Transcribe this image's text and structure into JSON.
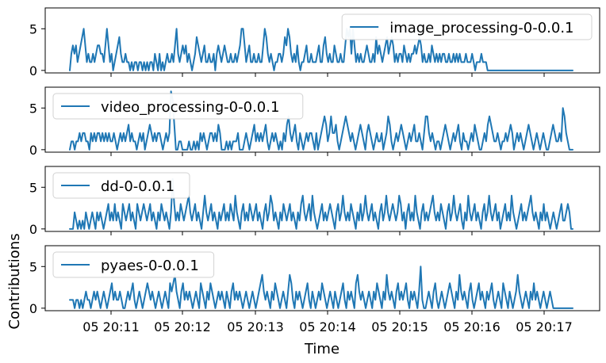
{
  "chart_data": {
    "type": "line",
    "x_axis_label": "Time",
    "y_axis_label": "Contributions",
    "time_ticks": [
      "05 20:11",
      "05 20:12",
      "05 20:13",
      "05 20:14",
      "05 20:15",
      "05 20:16",
      "05 20:17"
    ],
    "x_range_minutes_approx": [
      "20:10:28",
      "20:17:27"
    ],
    "line_color": "#1f77b4",
    "grid": false,
    "legend_placements": [
      "top-right",
      "top-left",
      "top-left",
      "top-left"
    ],
    "panels": [
      {
        "name": "image_processing-0-0.0.1",
        "yticks": [
          0,
          5
        ],
        "ylim": [
          -0.3,
          7.5
        ],
        "values": [
          0,
          2,
          3,
          2,
          3,
          1,
          2,
          3,
          4,
          5,
          3,
          1,
          2,
          1,
          1,
          2,
          1,
          2,
          3,
          3,
          2,
          2,
          1,
          3,
          5,
          3,
          1,
          2,
          0,
          1,
          2,
          3,
          4,
          2,
          1,
          1,
          2,
          1,
          1,
          0,
          1,
          0,
          1,
          1,
          0,
          1,
          1,
          0,
          1,
          0,
          1,
          0,
          1,
          1,
          0,
          2,
          1,
          0,
          2,
          0,
          1,
          0,
          1,
          2,
          1,
          1,
          2,
          1,
          3,
          5,
          2,
          1,
          2,
          3,
          2,
          3,
          1,
          2,
          1,
          0,
          1,
          2,
          4,
          3,
          2,
          1,
          2,
          3,
          1,
          1,
          2,
          1,
          1,
          2,
          0,
          2,
          3,
          2,
          1,
          2,
          3,
          2,
          1,
          1,
          2,
          1,
          1,
          2,
          1,
          2,
          3,
          5,
          5,
          3,
          1,
          2,
          3,
          1,
          1,
          2,
          1,
          1,
          2,
          1,
          1,
          3,
          5,
          4,
          2,
          1,
          2,
          1,
          0,
          1,
          1,
          2,
          2,
          1,
          2,
          4,
          3,
          5,
          4,
          2,
          1,
          2,
          1,
          3,
          1,
          0,
          1,
          1,
          2,
          3,
          1,
          1,
          2,
          1,
          1,
          1,
          2,
          3,
          1,
          1,
          3,
          4,
          2,
          1,
          2,
          1,
          1,
          3,
          2,
          1,
          1,
          2,
          1,
          1,
          3,
          5,
          4,
          5,
          2,
          5,
          3,
          1,
          2,
          1,
          2,
          1,
          1,
          2,
          3,
          2,
          1,
          1,
          2,
          1,
          4,
          2,
          3,
          2,
          1,
          2,
          3,
          4,
          2,
          3,
          4,
          3,
          1,
          2,
          1,
          2,
          2,
          1,
          3,
          2,
          1,
          2,
          1,
          2,
          2,
          3,
          2,
          3,
          4,
          3,
          1,
          2,
          1,
          1,
          2,
          1,
          3,
          2,
          1,
          2,
          1,
          2,
          1,
          2,
          2,
          1,
          1,
          2,
          1,
          1,
          2,
          1,
          2,
          1,
          2,
          1,
          1,
          1,
          2,
          1,
          1,
          1,
          2,
          1,
          0,
          1,
          1,
          1,
          2,
          1,
          1,
          1,
          0,
          0,
          0,
          0,
          0,
          0,
          0,
          0,
          0,
          0,
          0,
          0,
          0,
          0,
          0,
          0,
          0,
          0,
          0,
          0,
          0,
          0,
          0,
          0,
          0,
          0,
          0,
          0,
          0,
          0,
          0,
          0,
          0,
          0,
          0,
          0,
          0,
          0,
          0,
          0,
          0,
          0,
          0,
          0,
          0,
          0,
          0,
          0,
          0,
          0,
          0,
          0,
          0,
          0,
          0,
          0
        ]
      },
      {
        "name": "video_processing-0-0.0.1",
        "yticks": [
          0,
          5
        ],
        "ylim": [
          -0.3,
          7.5
        ],
        "values": [
          0,
          1,
          1,
          0,
          1,
          1,
          2,
          1,
          2,
          2,
          1,
          1,
          0,
          2,
          1,
          2,
          1,
          2,
          2,
          1,
          2,
          1,
          2,
          1,
          2,
          1,
          1,
          2,
          1,
          0,
          1,
          2,
          1,
          2,
          1,
          2,
          3,
          1,
          2,
          1,
          1,
          0,
          1,
          2,
          1,
          2,
          0,
          1,
          2,
          3,
          2,
          1,
          2,
          1,
          2,
          2,
          1,
          0,
          1,
          2,
          1,
          2,
          7,
          6,
          3,
          0,
          0,
          1,
          1,
          0,
          0,
          0,
          0,
          1,
          0,
          0,
          1,
          0,
          1,
          0,
          2,
          1,
          2,
          1,
          0,
          1,
          2,
          2,
          1,
          2,
          1,
          3,
          2,
          0,
          0,
          0,
          1,
          0,
          1,
          0,
          1,
          1,
          1,
          2,
          0,
          0,
          0,
          1,
          2,
          1,
          0,
          1,
          2,
          3,
          1,
          2,
          1,
          2,
          1,
          2,
          3,
          1,
          0,
          1,
          2,
          1,
          2,
          1,
          0,
          1,
          0,
          2,
          1,
          3,
          4,
          2,
          1,
          2,
          3,
          1,
          0,
          2,
          1,
          0,
          1,
          2,
          1,
          2,
          2,
          1,
          0,
          2,
          0,
          1,
          2,
          3,
          4,
          3,
          1,
          2,
          4,
          2,
          2,
          3,
          1,
          0,
          1,
          2,
          3,
          4,
          3,
          2,
          1,
          2,
          1,
          0,
          1,
          2,
          3,
          2,
          1,
          0,
          2,
          3,
          2,
          1,
          0,
          1,
          2,
          1,
          1,
          2,
          0,
          1,
          2,
          4,
          3,
          1,
          0,
          1,
          2,
          1,
          2,
          3,
          2,
          1,
          0,
          1,
          2,
          1,
          2,
          3,
          1,
          1,
          2,
          1,
          0,
          2,
          4,
          4,
          2,
          1,
          2,
          1,
          0,
          1,
          1,
          0,
          1,
          2,
          3,
          2,
          1,
          0,
          1,
          2,
          1,
          2,
          3,
          1,
          0,
          2,
          1,
          1,
          0,
          1,
          2,
          1,
          3,
          2,
          1,
          0,
          0,
          1,
          2,
          1,
          3,
          4,
          3,
          2,
          1,
          1,
          2,
          1,
          0,
          1,
          1,
          2,
          1,
          2,
          3,
          2,
          0,
          1,
          2,
          1,
          2,
          1,
          0,
          1,
          2,
          3,
          2,
          1,
          0,
          1,
          2,
          1,
          0,
          1,
          2,
          1,
          0,
          0,
          1,
          2,
          3,
          2,
          1,
          1,
          2,
          1,
          5,
          4,
          2,
          1,
          0,
          0,
          0
        ]
      },
      {
        "name": "dd-0-0.0.1",
        "yticks": [
          0,
          5
        ],
        "ylim": [
          -0.3,
          7.5
        ],
        "values": [
          0,
          0,
          0,
          2,
          1,
          0,
          1,
          0,
          1,
          0,
          2,
          1,
          0,
          1,
          2,
          1,
          0,
          2,
          1,
          2,
          1,
          0,
          1,
          2,
          3,
          1,
          2,
          1,
          3,
          1,
          2,
          1,
          0,
          3,
          2,
          1,
          2,
          3,
          1,
          2,
          1,
          0,
          3,
          2,
          1,
          2,
          3,
          2,
          1,
          2,
          3,
          1,
          2,
          1,
          0,
          2,
          1,
          3,
          2,
          1,
          2,
          1,
          0,
          2,
          6,
          3,
          1,
          2,
          1,
          3,
          2,
          1,
          2,
          3,
          4,
          2,
          1,
          2,
          3,
          1,
          2,
          1,
          0,
          2,
          4,
          2,
          1,
          2,
          3,
          1,
          2,
          1,
          0,
          2,
          1,
          2,
          3,
          1,
          2,
          1,
          3,
          2,
          1,
          4,
          2,
          1,
          0,
          2,
          3,
          1,
          2,
          1,
          3,
          2,
          1,
          2,
          3,
          1,
          2,
          1,
          0,
          2,
          3,
          1,
          2,
          4,
          3,
          1,
          2,
          1,
          0,
          2,
          1,
          3,
          2,
          1,
          2,
          3,
          1,
          2,
          1,
          0,
          2,
          1,
          3,
          4,
          2,
          1,
          2,
          3,
          1,
          4,
          2,
          1,
          0,
          1,
          2,
          3,
          1,
          2,
          1,
          2,
          3,
          2,
          1,
          0,
          2,
          3,
          1,
          2,
          4,
          2,
          1,
          2,
          1,
          3,
          2,
          1,
          0,
          2,
          1,
          3,
          1,
          2,
          4,
          2,
          1,
          2,
          3,
          1,
          2,
          1,
          0,
          2,
          3,
          1,
          2,
          4,
          2,
          1,
          2,
          3,
          2,
          1,
          2,
          4,
          3,
          1,
          2,
          0,
          2,
          3,
          1,
          2,
          1,
          4,
          2,
          1,
          0,
          2,
          3,
          1,
          2,
          1,
          2,
          3,
          4,
          2,
          1,
          2,
          1,
          3,
          2,
          1,
          0,
          2,
          3,
          1,
          2,
          4,
          2,
          1,
          2,
          3,
          1,
          0,
          2,
          1,
          4,
          2,
          1,
          2,
          3,
          1,
          2,
          1,
          0,
          2,
          3,
          1,
          2,
          4,
          2,
          1,
          2,
          3,
          1,
          2,
          0,
          1,
          2,
          3,
          1,
          2,
          1,
          4,
          2,
          1,
          0,
          1,
          2,
          3,
          1,
          2,
          1,
          2,
          3,
          4,
          2,
          1,
          2,
          1,
          0,
          2,
          1,
          3,
          1,
          2,
          1,
          0,
          1,
          2,
          1,
          0,
          1,
          2,
          3,
          1,
          1,
          2,
          3,
          2,
          0,
          0
        ]
      },
      {
        "name": "pyaes-0-0.0.1",
        "yticks": [
          0,
          5
        ],
        "ylim": [
          -0.3,
          7.5
        ],
        "values": [
          1,
          1,
          1,
          0,
          1,
          1,
          0,
          1,
          0,
          1,
          2,
          1,
          1,
          0,
          1,
          2,
          1,
          2,
          1,
          0,
          1,
          2,
          1,
          0,
          1,
          2,
          3,
          1,
          2,
          1,
          1,
          2,
          1,
          0,
          0,
          1,
          2,
          1,
          2,
          3,
          1,
          0,
          1,
          2,
          1,
          0,
          1,
          2,
          3,
          2,
          1,
          2,
          1,
          0,
          1,
          2,
          1,
          0,
          1,
          2,
          1,
          0,
          3,
          2,
          3,
          4,
          2,
          1,
          0,
          2,
          3,
          1,
          2,
          1,
          2,
          1,
          0,
          1,
          2,
          1,
          0,
          3,
          2,
          1,
          0,
          2,
          1,
          3,
          2,
          1,
          0,
          1,
          2,
          1,
          2,
          1,
          0,
          2,
          1,
          0,
          2,
          3,
          1,
          2,
          1,
          2,
          1,
          0,
          1,
          2,
          1,
          0,
          1,
          2,
          1,
          0,
          1,
          2,
          3,
          4,
          2,
          1,
          2,
          1,
          0,
          2,
          1,
          3,
          2,
          1,
          0,
          1,
          2,
          1,
          0,
          2,
          4,
          3,
          1,
          0,
          2,
          1,
          2,
          1,
          0,
          1,
          2,
          3,
          1,
          0,
          2,
          1,
          0,
          1,
          2,
          1,
          3,
          2,
          1,
          0,
          1,
          2,
          1,
          0,
          2,
          1,
          0,
          1,
          2,
          3,
          1,
          0,
          2,
          1,
          2,
          1,
          0,
          3,
          4,
          2,
          1,
          2,
          1,
          0,
          1,
          2,
          1,
          0,
          2,
          1,
          3,
          2,
          1,
          0,
          2,
          1,
          4,
          2,
          1,
          2,
          1,
          0,
          2,
          3,
          1,
          2,
          1,
          2,
          3,
          1,
          0,
          2,
          1,
          2,
          1,
          0,
          2,
          5,
          1,
          0,
          0,
          1,
          2,
          1,
          0,
          2,
          3,
          1,
          0,
          1,
          2,
          1,
          0,
          1,
          2,
          3,
          2,
          1,
          0,
          2,
          1,
          4,
          2,
          1,
          2,
          1,
          0,
          2,
          3,
          1,
          0,
          1,
          2,
          3,
          1,
          2,
          1,
          0,
          2,
          1,
          2,
          3,
          1,
          0,
          1,
          2,
          1,
          0,
          3,
          2,
          1,
          0,
          2,
          1,
          0,
          1,
          2,
          4,
          2,
          1,
          0,
          1,
          2,
          1,
          0,
          2,
          1,
          3,
          1,
          2,
          1,
          0,
          1,
          2,
          1,
          0,
          1,
          2,
          1,
          0,
          0,
          0,
          0,
          0,
          0,
          0,
          0,
          0,
          0,
          0,
          0,
          0
        ]
      }
    ]
  }
}
